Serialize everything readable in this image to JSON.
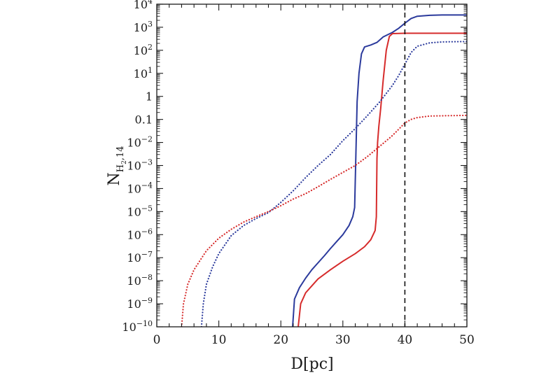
{
  "chart_data": {
    "type": "line",
    "xlabel": "D[pc]",
    "ylabel": {
      "main": "N",
      "sub1": "H",
      "sub2": "2",
      "sub3": ",14"
    },
    "xlim": [
      0,
      50
    ],
    "ylim": [
      1e-10,
      10000
    ],
    "yscale": "log",
    "x_ticks": [
      {
        "value": 0,
        "label": "0"
      },
      {
        "value": 10,
        "label": "10"
      },
      {
        "value": 20,
        "label": "20"
      },
      {
        "value": 30,
        "label": "30"
      },
      {
        "value": 40,
        "label": "40"
      },
      {
        "value": 50,
        "label": "50"
      }
    ],
    "y_ticks": [
      {
        "exp": -10,
        "base": "10",
        "sup": "−10"
      },
      {
        "exp": -9,
        "base": "10",
        "sup": "−9"
      },
      {
        "exp": -8,
        "base": "10",
        "sup": "−8"
      },
      {
        "exp": -7,
        "base": "10",
        "sup": "−7"
      },
      {
        "exp": -6,
        "base": "10",
        "sup": "−6"
      },
      {
        "exp": -5,
        "base": "10",
        "sup": "−5"
      },
      {
        "exp": -4,
        "base": "10",
        "sup": "−4"
      },
      {
        "exp": -3,
        "base": "10",
        "sup": "−3"
      },
      {
        "exp": -2,
        "base": "10",
        "sup": "−2"
      },
      {
        "exp": -1,
        "base": "0.1",
        "sup": ""
      },
      {
        "exp": 0,
        "base": "1",
        "sup": ""
      },
      {
        "exp": 1,
        "base": "10",
        "sup": "1"
      },
      {
        "exp": 2,
        "base": "10",
        "sup": "2"
      },
      {
        "exp": 3,
        "base": "10",
        "sup": "3"
      },
      {
        "exp": 4,
        "base": "10",
        "sup": "4"
      }
    ],
    "series": [
      {
        "color": "#2b3a9c",
        "style": "solid",
        "points": [
          [
            21.9,
            1e-10
          ],
          [
            22.2,
            1.6e-09
          ],
          [
            23,
            5e-09
          ],
          [
            24,
            1.3e-08
          ],
          [
            25,
            3e-08
          ],
          [
            26,
            6e-08
          ],
          [
            27,
            1.2e-07
          ],
          [
            28,
            2.5e-07
          ],
          [
            29,
            5e-07
          ],
          [
            30,
            1e-06
          ],
          [
            31,
            2.5e-06
          ],
          [
            31.6,
            6e-06
          ],
          [
            31.9,
            1.5e-05
          ],
          [
            32.1,
            0.003
          ],
          [
            32.3,
            0.6
          ],
          [
            32.6,
            10
          ],
          [
            33,
            70
          ],
          [
            33.5,
            140
          ],
          [
            34.5,
            170
          ],
          [
            35.5,
            220
          ],
          [
            36.5,
            380
          ],
          [
            38,
            600
          ],
          [
            39,
            900
          ],
          [
            40,
            1500
          ],
          [
            41,
            2400
          ],
          [
            42,
            3000
          ],
          [
            44,
            3300
          ],
          [
            46,
            3400
          ],
          [
            50,
            3400
          ]
        ]
      },
      {
        "color": "#d62b2b",
        "style": "solid",
        "points": [
          [
            22.8,
            1e-10
          ],
          [
            23.2,
            1e-09
          ],
          [
            24,
            3e-09
          ],
          [
            25,
            6e-09
          ],
          [
            26,
            1.2e-08
          ],
          [
            28,
            3e-08
          ],
          [
            30,
            7e-08
          ],
          [
            32,
            1.5e-07
          ],
          [
            33.5,
            3e-07
          ],
          [
            34.5,
            6e-07
          ],
          [
            35.2,
            1.5e-06
          ],
          [
            35.4,
            6e-06
          ],
          [
            35.5,
            0.002
          ],
          [
            35.6,
            0.01
          ],
          [
            35.8,
            0.05
          ],
          [
            36.1,
            0.3
          ],
          [
            36.5,
            5
          ],
          [
            37,
            100
          ],
          [
            37.5,
            400
          ],
          [
            38,
            530
          ],
          [
            40,
            550
          ],
          [
            45,
            550
          ],
          [
            50,
            550
          ]
        ]
      },
      {
        "color": "#2b3a9c",
        "style": "dotted",
        "points": [
          [
            7.2,
            1e-10
          ],
          [
            7.5,
            1e-09
          ],
          [
            8,
            7e-09
          ],
          [
            9,
            4e-08
          ],
          [
            10,
            1.5e-07
          ],
          [
            12,
            9e-07
          ],
          [
            14,
            2.5e-06
          ],
          [
            16,
            5e-06
          ],
          [
            18,
            9e-06
          ],
          [
            20,
            2.5e-05
          ],
          [
            22,
            8e-05
          ],
          [
            24,
            0.0003
          ],
          [
            26,
            0.001
          ],
          [
            28,
            0.003
          ],
          [
            30,
            0.012
          ],
          [
            32,
            0.04
          ],
          [
            34,
            0.15
          ],
          [
            36,
            0.6
          ],
          [
            38,
            3
          ],
          [
            39,
            8
          ],
          [
            40,
            25
          ],
          [
            41,
            80
          ],
          [
            42,
            150
          ],
          [
            44,
            210
          ],
          [
            46,
            230
          ],
          [
            50,
            240
          ]
        ]
      },
      {
        "color": "#d62b2b",
        "style": "dotted",
        "points": [
          [
            4,
            1e-10
          ],
          [
            4.3,
            1e-09
          ],
          [
            5,
            7e-09
          ],
          [
            6,
            3e-08
          ],
          [
            8,
            2e-07
          ],
          [
            10,
            7e-07
          ],
          [
            12,
            1.7e-06
          ],
          [
            14,
            3.5e-06
          ],
          [
            16,
            6e-06
          ],
          [
            18,
            1e-05
          ],
          [
            20,
            1.8e-05
          ],
          [
            22,
            3.5e-05
          ],
          [
            24,
            6e-05
          ],
          [
            26,
            0.00012
          ],
          [
            28,
            0.00025
          ],
          [
            30,
            0.0005
          ],
          [
            32,
            0.001
          ],
          [
            34,
            0.0025
          ],
          [
            36,
            0.007
          ],
          [
            38,
            0.02
          ],
          [
            40,
            0.07
          ],
          [
            41,
            0.1
          ],
          [
            42,
            0.12
          ],
          [
            44,
            0.14
          ],
          [
            50,
            0.15
          ]
        ]
      }
    ],
    "vline": {
      "x": 40,
      "style": "dashed",
      "color": "#111111"
    },
    "grid": false,
    "legend": "none"
  }
}
